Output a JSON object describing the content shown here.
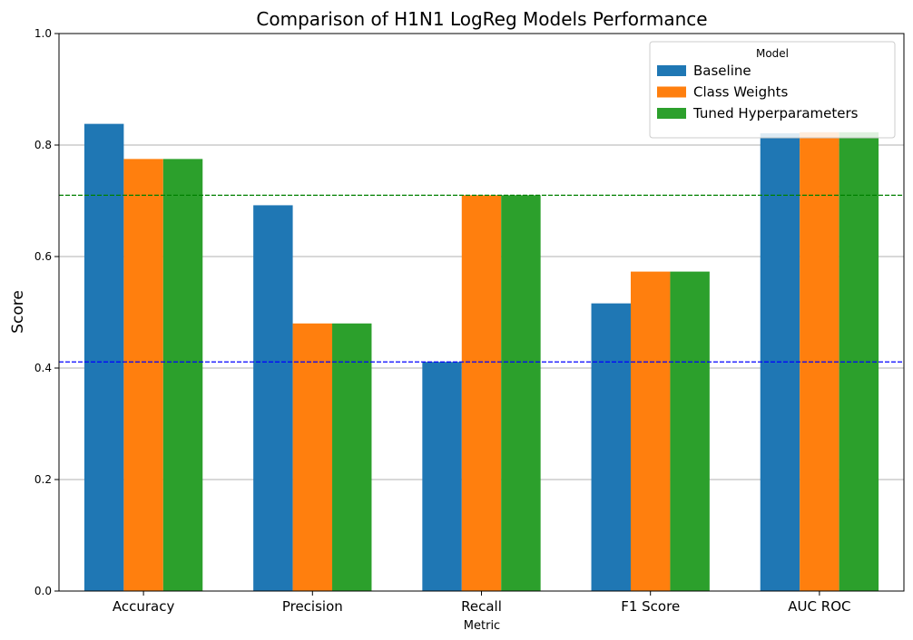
{
  "chart_data": {
    "type": "bar",
    "title": "Comparison of H1N1 LogReg Models Performance",
    "xlabel": "Metric",
    "ylabel": "Score",
    "categories": [
      "Accuracy",
      "Precision",
      "Recall",
      "F1 Score",
      "AUC ROC"
    ],
    "series": [
      {
        "name": "Baseline",
        "color": "#1f77b4",
        "values": [
          0.838,
          0.692,
          0.411,
          0.516,
          0.821
        ]
      },
      {
        "name": "Class Weights",
        "color": "#ff7f0e",
        "values": [
          0.775,
          0.48,
          0.71,
          0.573,
          0.823
        ]
      },
      {
        "name": "Tuned Hyperparameters",
        "color": "#2ca02c",
        "values": [
          0.775,
          0.48,
          0.71,
          0.573,
          0.823
        ]
      }
    ],
    "ylim": [
      0,
      1.0
    ],
    "yticks": [
      "0.0",
      "0.2",
      "0.4",
      "0.6",
      "0.8",
      "1.0"
    ],
    "ytick_values": [
      0,
      0.2,
      0.4,
      0.6,
      0.8,
      1.0
    ],
    "grid": "y",
    "legend": {
      "title": "Model",
      "placement": "top-right"
    },
    "reference_lines": [
      {
        "value": 0.411,
        "color": "#0000ff",
        "style": "dashed"
      },
      {
        "value": 0.71,
        "color": "#008000",
        "style": "dashed"
      }
    ]
  }
}
